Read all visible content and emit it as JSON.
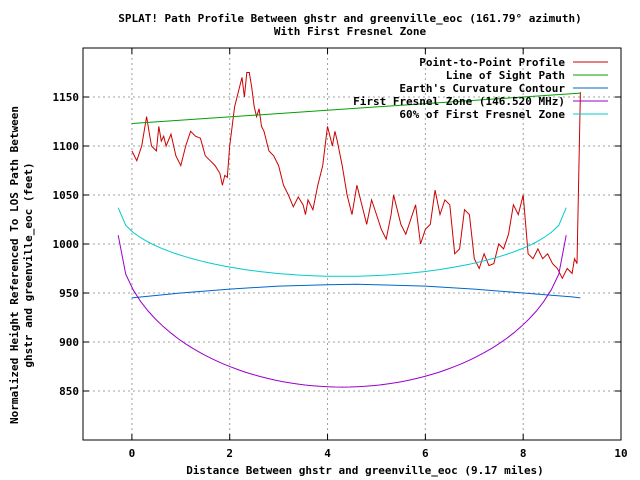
{
  "chart_data": {
    "type": "line",
    "title": "SPLAT! Path Profile Between ghstr and greenville_eoc (161.79° azimuth)",
    "subtitle": "With First Fresnel Zone",
    "xlabel": "Distance Between ghstr and greenville_eoc (9.17 miles)",
    "ylabel_lines": [
      "Normalized Height Referenced To LOS Path Between",
      "ghstr and greenville_eoc (feet)"
    ],
    "xlim": [
      -1,
      10
    ],
    "ylim": [
      800,
      1200
    ],
    "x_ticks": [
      0,
      2,
      4,
      6,
      8,
      10
    ],
    "y_ticks": [
      850,
      900,
      950,
      1000,
      1050,
      1100,
      1150
    ],
    "grid": true,
    "legend_position": "top-right",
    "series": [
      {
        "name": "Point-to-Point Profile",
        "color": "#cc0000",
        "x": [
          0,
          0.1,
          0.2,
          0.3,
          0.35,
          0.4,
          0.5,
          0.55,
          0.6,
          0.65,
          0.7,
          0.8,
          0.9,
          1.0,
          1.1,
          1.2,
          1.3,
          1.4,
          1.5,
          1.6,
          1.7,
          1.8,
          1.85,
          1.9,
          1.95,
          2.0,
          2.1,
          2.2,
          2.25,
          2.3,
          2.35,
          2.4,
          2.45,
          2.5,
          2.55,
          2.6,
          2.65,
          2.7,
          2.8,
          2.9,
          3.0,
          3.1,
          3.2,
          3.3,
          3.4,
          3.5,
          3.55,
          3.6,
          3.7,
          3.8,
          3.9,
          4.0,
          4.05,
          4.1,
          4.15,
          4.2,
          4.3,
          4.4,
          4.5,
          4.6,
          4.7,
          4.8,
          4.9,
          5.0,
          5.1,
          5.2,
          5.3,
          5.35,
          5.4,
          5.5,
          5.6,
          5.7,
          5.8,
          5.9,
          6.0,
          6.1,
          6.2,
          6.3,
          6.4,
          6.5,
          6.6,
          6.7,
          6.8,
          6.9,
          7.0,
          7.1,
          7.2,
          7.3,
          7.4,
          7.5,
          7.6,
          7.7,
          7.8,
          7.9,
          8.0,
          8.1,
          8.2,
          8.3,
          8.4,
          8.5,
          8.6,
          8.7,
          8.8,
          8.9,
          9.0,
          9.05,
          9.1,
          9.17
        ],
        "y": [
          1095,
          1085,
          1100,
          1130,
          1115,
          1100,
          1095,
          1120,
          1105,
          1110,
          1100,
          1112,
          1090,
          1080,
          1100,
          1115,
          1110,
          1108,
          1090,
          1085,
          1080,
          1072,
          1060,
          1070,
          1068,
          1100,
          1140,
          1160,
          1170,
          1150,
          1175,
          1175,
          1160,
          1140,
          1130,
          1138,
          1120,
          1115,
          1095,
          1090,
          1080,
          1060,
          1050,
          1038,
          1048,
          1040,
          1030,
          1045,
          1035,
          1060,
          1080,
          1120,
          1110,
          1100,
          1115,
          1105,
          1080,
          1050,
          1030,
          1060,
          1040,
          1020,
          1045,
          1030,
          1015,
          1005,
          1030,
          1050,
          1040,
          1020,
          1010,
          1025,
          1040,
          1000,
          1015,
          1020,
          1055,
          1030,
          1045,
          1040,
          990,
          995,
          1035,
          1030,
          985,
          975,
          990,
          978,
          980,
          1000,
          995,
          1010,
          1040,
          1030,
          1050,
          990,
          985,
          995,
          985,
          990,
          980,
          975,
          965,
          975,
          970,
          985,
          980,
          1155
        ]
      },
      {
        "name": "Line of Sight Path",
        "color": "#00a000",
        "x": [
          0,
          9.17
        ],
        "y": [
          1123,
          1154
        ]
      },
      {
        "name": "Earth's Curvature Contour",
        "color": "#0066cc",
        "x": [
          0,
          1,
          2,
          3,
          4,
          4.58,
          5,
          6,
          7,
          8,
          9,
          9.17
        ],
        "y": [
          945,
          950,
          954,
          957,
          958.5,
          959,
          958.5,
          957,
          954,
          950,
          946,
          945
        ]
      },
      {
        "name": "First Fresnel Zone (146.520 MHz)",
        "color": "#9900cc",
        "curve": "fresnel",
        "center_y": 1009,
        "center_x": 4.3,
        "half_width": 4.58,
        "depth": 155
      },
      {
        "name": "60% of First Fresnel Zone",
        "color": "#00cccc",
        "curve": "fresnel",
        "center_y": 1037,
        "center_x": 4.3,
        "half_width": 4.58,
        "depth": 70
      }
    ]
  }
}
